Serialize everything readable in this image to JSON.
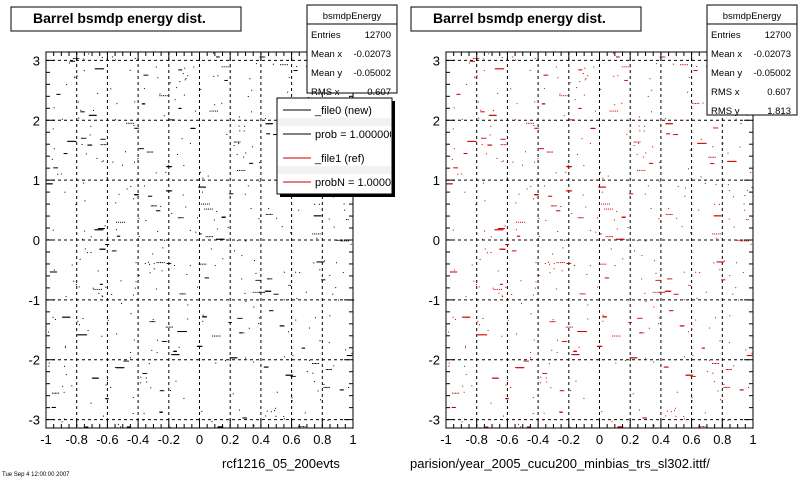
{
  "chart_data": [
    {
      "type": "scatter",
      "title": "Barrel bsmdp energy dist.",
      "marker_color": "#000000",
      "xlim": [
        -1,
        1
      ],
      "ylim": [
        -3.14,
        3.14
      ],
      "x_ticks": [
        -1,
        -0.8,
        -0.6,
        -0.4,
        -0.2,
        0,
        0.2,
        0.4,
        0.6,
        0.8,
        1
      ],
      "x_tick_labels": [
        "-1",
        "-0.8",
        "-0.6",
        "-0.4",
        "-0.2",
        "0",
        "0.2",
        "0.4",
        "0.6",
        "0.8",
        "1"
      ],
      "y_ticks": [
        -3,
        -2,
        -1,
        0,
        1,
        2,
        3
      ],
      "y_tick_labels": [
        "-3",
        "-2",
        "-1",
        "0",
        "1",
        "2",
        "3"
      ],
      "grid": true,
      "stats": {
        "name": "bsmdpEnergy",
        "rows": [
          {
            "label": "Entries",
            "value": "12700"
          },
          {
            "label": "Mean x",
            "value": "-0.02073"
          },
          {
            "label": "Mean y",
            "value": "-0.05002"
          },
          {
            "label": "RMS x",
            "value": "0.607"
          }
        ]
      },
      "legend": {
        "placement": "top-right",
        "entries": [
          {
            "label": "_file0 (new)",
            "color": "#000000"
          },
          {
            "label": "prob = 1.000000",
            "color": "#000000"
          },
          {
            "label": "_file1 (ref)",
            "color": "#cc0000"
          },
          {
            "label": "probN = 1.000000",
            "color": "#cc0000"
          }
        ]
      },
      "footer": "rcf1216_05_200evts"
    },
    {
      "type": "scatter",
      "title": "Barrel bsmdp energy dist.",
      "marker_color": "#cc0000",
      "xlim": [
        -1,
        1
      ],
      "ylim": [
        -3.14,
        3.14
      ],
      "x_ticks": [
        -1,
        -0.8,
        -0.6,
        -0.4,
        -0.2,
        0,
        0.2,
        0.4,
        0.6,
        0.8,
        1
      ],
      "x_tick_labels": [
        "-1",
        "-0.8",
        "-0.6",
        "-0.4",
        "-0.2",
        "0",
        "0.2",
        "0.4",
        "0.6",
        "0.8",
        "1"
      ],
      "y_ticks": [
        -3,
        -2,
        -1,
        0,
        1,
        2,
        3
      ],
      "y_tick_labels": [
        "-3",
        "-2",
        "-1",
        "0",
        "1",
        "2",
        "3"
      ],
      "grid": true,
      "stats": {
        "name": "bsmdpEnergy",
        "rows": [
          {
            "label": "Entries",
            "value": "12700"
          },
          {
            "label": "Mean x",
            "value": "-0.02073"
          },
          {
            "label": "Mean y",
            "value": "-0.05002"
          },
          {
            "label": "RMS x",
            "value": "0.607"
          },
          {
            "label": "RMS y",
            "value": "1.813"
          }
        ]
      },
      "footer": "parision/year_2005_cucu200_minbias_trs_sl302.ittf/"
    }
  ],
  "corner_note": "Tue Sep 4 12:00:00 2007"
}
